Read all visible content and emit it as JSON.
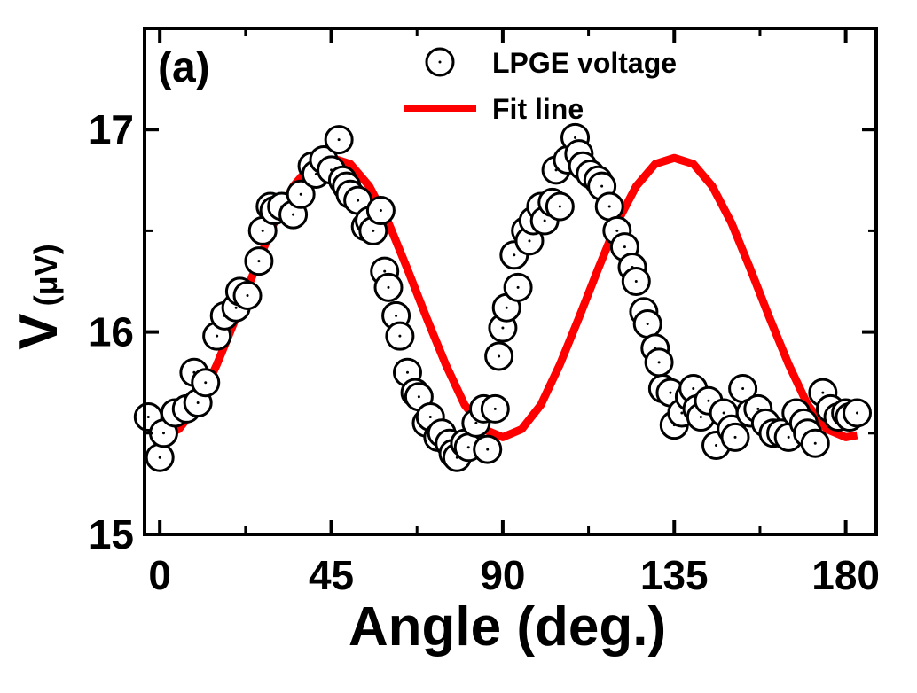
{
  "chart_data": {
    "type": "scatter",
    "panel_label": "(a)",
    "title": "",
    "xlabel": "Angle (deg.)",
    "ylabel_main": "V",
    "ylabel_unit": "(μV)",
    "xlim": [
      -4,
      188
    ],
    "ylim": [
      15.0,
      17.5
    ],
    "xticks": [
      0,
      45,
      90,
      135,
      180
    ],
    "xtick_labels": [
      "0",
      "45",
      "90",
      "135",
      "180"
    ],
    "yticks": [
      15,
      16,
      17
    ],
    "ytick_labels": [
      "15",
      "16",
      "17"
    ],
    "grid": false,
    "legend_position": "top-right",
    "colors": {
      "scatter": "#000000",
      "fit": "#ff0000"
    },
    "series": [
      {
        "name": "LPGE voltage",
        "style": "open-circle",
        "x": [
          -3,
          0,
          1,
          4,
          7,
          9,
          10,
          12,
          15,
          17,
          20,
          21,
          23,
          26,
          27,
          29,
          30,
          32,
          35,
          37,
          40,
          41,
          43,
          45,
          47,
          48,
          49,
          50,
          52,
          54,
          55,
          56,
          58,
          59,
          60,
          62,
          63,
          65,
          67,
          68,
          70,
          71,
          73,
          74,
          76,
          77,
          78,
          80,
          81,
          83,
          85,
          86,
          88,
          89,
          90,
          91,
          93,
          94,
          96,
          97,
          98,
          100,
          101,
          103,
          104,
          105,
          107,
          109,
          110,
          111,
          113,
          115,
          116,
          118,
          120,
          122,
          124,
          125,
          127,
          128,
          130,
          131,
          132,
          134,
          135,
          137,
          139,
          140,
          141,
          142,
          144,
          146,
          148,
          150,
          151,
          153,
          155,
          157,
          159,
          161,
          163,
          165,
          167,
          169,
          170,
          172,
          174,
          176,
          178,
          180,
          181,
          183
        ],
        "y": [
          15.58,
          15.38,
          15.5,
          15.6,
          15.62,
          15.8,
          15.65,
          15.75,
          15.98,
          16.08,
          16.12,
          16.2,
          16.18,
          16.35,
          16.5,
          16.62,
          16.6,
          16.62,
          16.58,
          16.68,
          16.82,
          16.78,
          16.85,
          16.8,
          16.95,
          16.75,
          16.72,
          16.68,
          16.65,
          16.52,
          16.55,
          16.5,
          16.6,
          16.3,
          16.22,
          16.08,
          15.98,
          15.8,
          15.7,
          15.68,
          15.55,
          15.58,
          15.48,
          15.5,
          15.45,
          15.4,
          15.38,
          15.45,
          15.43,
          15.55,
          15.62,
          15.42,
          15.62,
          15.88,
          16.02,
          16.12,
          16.38,
          16.22,
          16.5,
          16.45,
          16.55,
          16.62,
          16.55,
          16.64,
          16.8,
          16.62,
          16.85,
          16.96,
          16.88,
          16.82,
          16.78,
          16.75,
          16.72,
          16.62,
          16.5,
          16.42,
          16.32,
          16.25,
          16.1,
          16.04,
          15.92,
          15.85,
          15.72,
          15.7,
          15.54,
          15.6,
          15.68,
          15.72,
          15.62,
          15.58,
          15.66,
          15.44,
          15.6,
          15.52,
          15.48,
          15.72,
          15.6,
          15.62,
          15.55,
          15.5,
          15.5,
          15.48,
          15.6,
          15.55,
          15.5,
          15.45,
          15.7,
          15.62,
          15.58,
          15.6,
          15.58,
          15.6
        ]
      },
      {
        "name": "Fit line",
        "style": "line",
        "x": [
          -2,
          0,
          5,
          10,
          15,
          20,
          25,
          30,
          35,
          40,
          45,
          50,
          55,
          60,
          65,
          70,
          75,
          80,
          85,
          90,
          95,
          100,
          105,
          110,
          115,
          120,
          125,
          130,
          135,
          140,
          145,
          150,
          155,
          160,
          165,
          170,
          175,
          180,
          183
        ],
        "y": [
          15.48,
          15.48,
          15.52,
          15.64,
          15.84,
          16.07,
          16.31,
          16.54,
          16.72,
          16.83,
          16.86,
          16.83,
          16.72,
          16.54,
          16.31,
          16.07,
          15.84,
          15.64,
          15.52,
          15.48,
          15.52,
          15.64,
          15.84,
          16.07,
          16.31,
          16.54,
          16.72,
          16.83,
          16.86,
          16.83,
          16.72,
          16.54,
          16.31,
          16.07,
          15.84,
          15.64,
          15.52,
          15.48,
          15.49
        ]
      }
    ]
  }
}
